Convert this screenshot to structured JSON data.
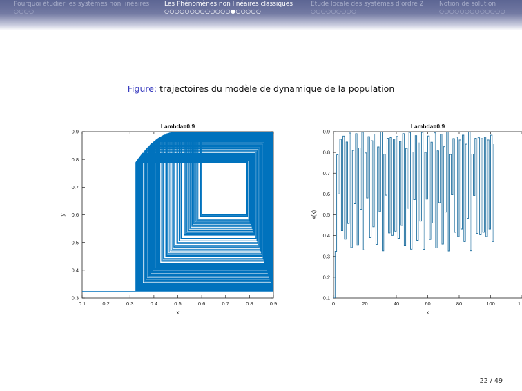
{
  "nav": [
    {
      "title": "Pourquoi étudier les systèmes non linéaires",
      "dots": "○○○○",
      "active": false
    },
    {
      "title": "Les Phénomènes non linéaires classiques",
      "dots": "○○○○○○○○○○○○○●○○○○○",
      "active": true
    },
    {
      "title": "Etude locale des systèmes d'ordre 2",
      "dots": "○○○○○○○○○",
      "active": false
    },
    {
      "title": "Notion de solution",
      "dots": "○○○○○○○○○○○○○",
      "active": false
    }
  ],
  "caption": {
    "label": "Figure:",
    "text": "trajectoires du modèle de dynamique de la population"
  },
  "page": "22 / 49",
  "chart_data": [
    {
      "type": "line",
      "title": "Lambda=0.9",
      "xlabel": "x",
      "ylabel": "y",
      "xlim": [
        0.1,
        0.9
      ],
      "ylim": [
        0.3,
        0.9
      ],
      "xticks": [
        "0.1",
        "0.2",
        "0.3",
        "0.4",
        "0.5",
        "0.6",
        "0.7",
        "0.8",
        "0.9"
      ],
      "yticks": [
        "0.3",
        "0.4",
        "0.5",
        "0.6",
        "0.7",
        "0.8",
        "0.9"
      ],
      "series": [
        {
          "model": "logistic",
          "lambda": 0.9,
          "x0": 0.1,
          "rendering": "cobweb staircase",
          "color": "#0072bd"
        }
      ]
    },
    {
      "type": "line",
      "title": "Lambda=0.9",
      "xlabel": "k",
      "ylabel": "x(k)",
      "xlim": [
        0,
        120
      ],
      "ylim": [
        0.1,
        0.9
      ],
      "xticks": [
        "0",
        "20",
        "40",
        "60",
        "80",
        "100",
        "1"
      ],
      "yticks": [
        "0.1",
        "0.2",
        "0.3",
        "0.4",
        "0.5",
        "0.6",
        "0.7",
        "0.8",
        "0.9"
      ],
      "series": [
        {
          "model": "logistic",
          "lambda": 0.9,
          "x0": 0.1,
          "steps": 102,
          "rendering": "stairs",
          "color": "#1f6f9f"
        }
      ]
    }
  ]
}
